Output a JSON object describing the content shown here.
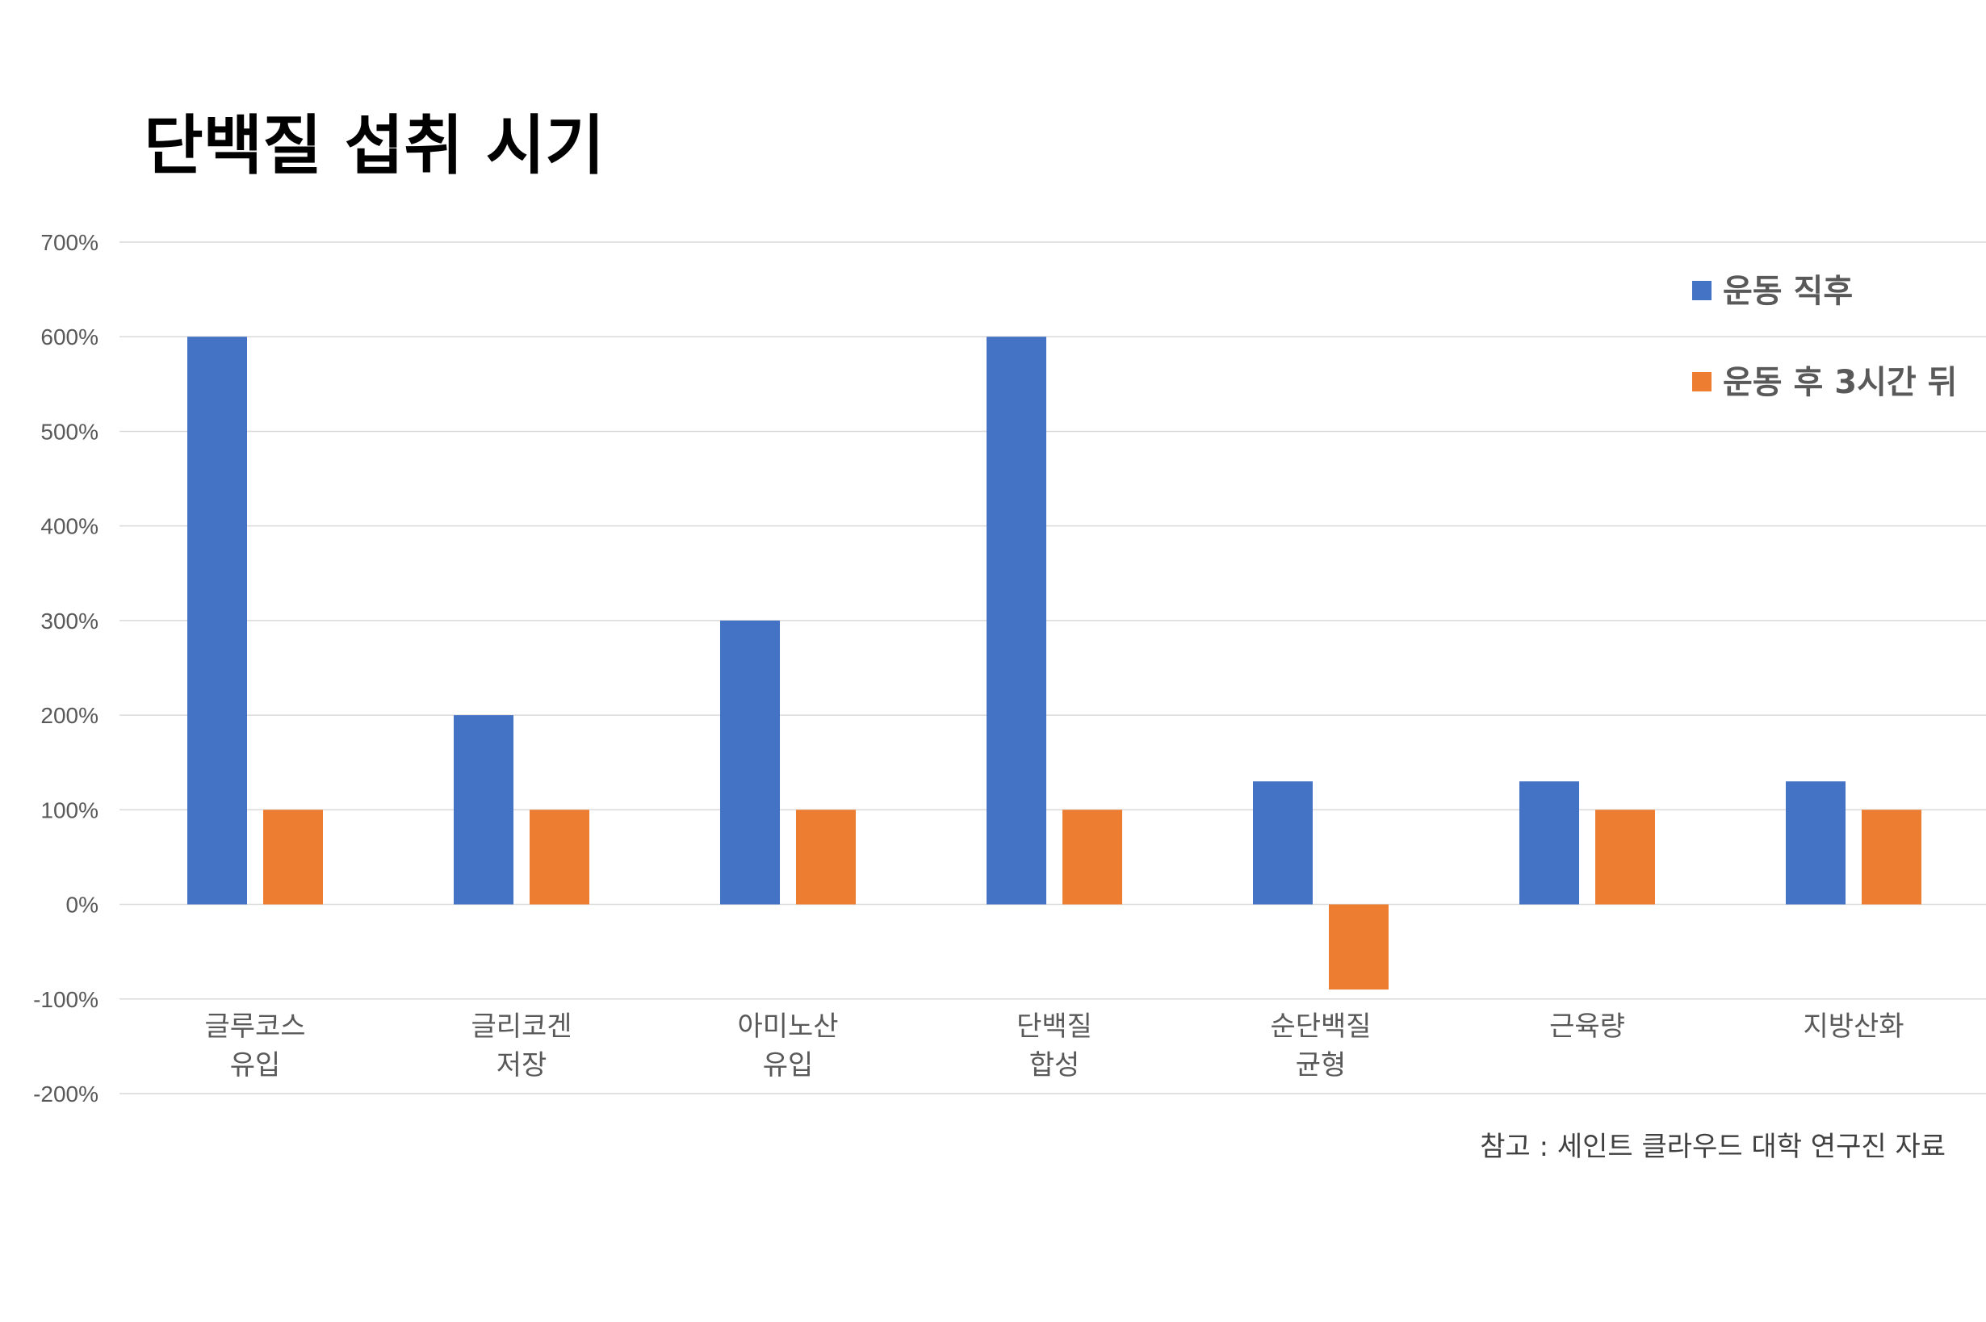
{
  "chart_data": {
    "type": "bar",
    "title": "단백질 섭취 시기",
    "categories": [
      [
        "글루코스",
        "유입"
      ],
      [
        "글리코겐",
        "저장"
      ],
      [
        "아미노산",
        "유입"
      ],
      [
        "단백질",
        "합성"
      ],
      [
        "순단백질",
        "균형"
      ],
      [
        "근육량"
      ],
      [
        "지방산화"
      ]
    ],
    "series": [
      {
        "name": "운동 직후",
        "color": "#4472C4",
        "values": [
          600,
          200,
          300,
          600,
          130,
          130,
          130
        ]
      },
      {
        "name": "운동 후 3시간 뒤",
        "color": "#ED7D31",
        "values": [
          100,
          100,
          100,
          100,
          -90,
          100,
          100
        ]
      }
    ],
    "ylim": [
      -200,
      700
    ],
    "yticks": [
      700,
      600,
      500,
      400,
      300,
      200,
      100,
      0,
      -100,
      -200
    ],
    "ytick_suffix": "%",
    "grid": true,
    "legend_position": "top-right",
    "source": "참고 : 세인트 클라우드 대학 연구진 자료"
  }
}
